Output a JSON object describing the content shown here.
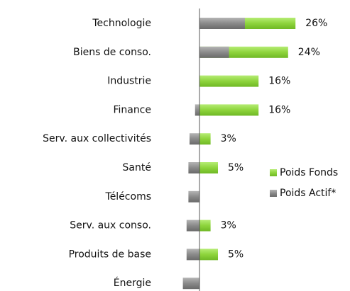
{
  "chart_data": {
    "type": "barh",
    "categories": [
      "Technologie",
      "Biens de conso.",
      "Industrie",
      "Finance",
      "Serv. aux collectivités",
      "Santé",
      "Télécoms",
      "Serv. aux conso.",
      "Produits de base",
      "Énergie"
    ],
    "series": [
      {
        "name": "Poids Fonds",
        "color": "#8ed43c",
        "values": [
          26,
          24,
          16,
          16,
          3,
          5,
          0,
          3,
          5,
          0
        ],
        "value_labels": [
          "26%",
          "24%",
          "16%",
          "16%",
          "3%",
          "5%",
          null,
          "3%",
          "5%",
          null
        ]
      },
      {
        "name": "Poids Actif*",
        "color": "#8a8a8a",
        "values": [
          12.3,
          8,
          0,
          -1.2,
          -2.7,
          -3,
          -3,
          -3.5,
          -3.5,
          -4.5
        ]
      }
    ],
    "xlim": [
      -5,
      28
    ],
    "legend": "right"
  }
}
